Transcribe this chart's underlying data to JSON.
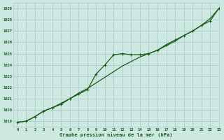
{
  "title": "Graphe pression niveau de la mer (hPa)",
  "background_color": "#cce8e0",
  "grid_color": "#aacccc",
  "line_color": "#1a5c1a",
  "xlim": [
    -0.5,
    23
  ],
  "ylim": [
    1018.5,
    1029.5
  ],
  "yticks": [
    1019,
    1020,
    1021,
    1022,
    1023,
    1024,
    1025,
    1026,
    1027,
    1028,
    1029
  ],
  "xticks": [
    0,
    1,
    2,
    3,
    4,
    5,
    6,
    7,
    8,
    9,
    10,
    11,
    12,
    13,
    14,
    15,
    16,
    17,
    18,
    19,
    20,
    21,
    22,
    23
  ],
  "line1_x": [
    0,
    1,
    2,
    3,
    4,
    5,
    6,
    7,
    8,
    9,
    10,
    11,
    12,
    13,
    14,
    15,
    16,
    17,
    18,
    19,
    20,
    21,
    22,
    23
  ],
  "line1_y": [
    1018.9,
    1019.0,
    1019.4,
    1019.9,
    1020.2,
    1020.6,
    1021.0,
    1021.5,
    1021.9,
    1022.4,
    1022.9,
    1023.4,
    1023.9,
    1024.3,
    1024.7,
    1025.0,
    1025.3,
    1025.7,
    1026.1,
    1026.6,
    1027.0,
    1027.5,
    1028.1,
    1029.0
  ],
  "line2_x": [
    0,
    1,
    2,
    3,
    4,
    5,
    6,
    7,
    8,
    9,
    10,
    11,
    12,
    13,
    14,
    15,
    16,
    17,
    18,
    19,
    20,
    21,
    22,
    23
  ],
  "line2_y": [
    1018.9,
    1019.0,
    1019.4,
    1019.9,
    1020.2,
    1020.5,
    1021.0,
    1021.4,
    1021.8,
    1023.2,
    1024.0,
    1024.9,
    1025.0,
    1024.9,
    1024.9,
    1025.0,
    1025.3,
    1025.8,
    1026.2,
    1026.6,
    1027.0,
    1027.5,
    1027.9,
    1029.0
  ]
}
